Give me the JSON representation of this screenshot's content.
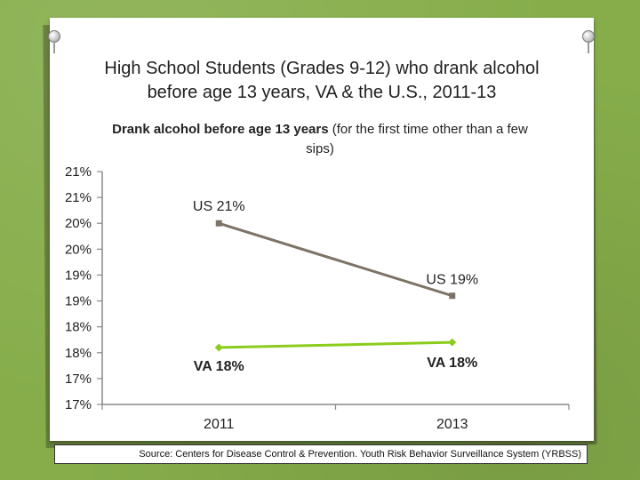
{
  "slide": {
    "title_line1": "High School Students (Grades 9-12) who drank alcohol",
    "title_line2_prefix": "before age 13 years,",
    "title_line2_suffix": " VA & the U.S., 2011-13",
    "subtitle_bold": "Drank alcohol before age 13 years",
    "subtitle_rest": " (for the first time other than a few sips)",
    "source": "Source: Centers for Disease Control & Prevention. Youth Risk Behavior Surveillance System (YRBSS)"
  },
  "colors": {
    "background": "#86ad4a",
    "us_line": "#7f7366",
    "va_line": "#8ccc1c",
    "axis": "#888888"
  },
  "chart_data": {
    "type": "line",
    "title": "Drank alcohol before age 13 years (for the first time other than a few sips)",
    "categories": [
      "2011",
      "2013"
    ],
    "ylim": [
      17,
      21.5
    ],
    "y_ticks": [
      17.0,
      17.5,
      18.0,
      18.5,
      19.0,
      19.5,
      20.0,
      20.5,
      21.0,
      21.5
    ],
    "y_tick_labels": [
      "17%",
      "17%",
      "18%",
      "18%",
      "19%",
      "19%",
      "20%",
      "20%",
      "21%",
      "21%"
    ],
    "series": [
      {
        "name": "US",
        "values": [
          20.5,
          19.1
        ],
        "data_labels": [
          "US  21%",
          "US  19%"
        ],
        "color": "#7f7366",
        "marker": "square"
      },
      {
        "name": "VA",
        "values": [
          18.1,
          18.2
        ],
        "data_labels": [
          "VA  18%",
          "VA  18%"
        ],
        "color": "#8ccc1c",
        "marker": "diamond"
      }
    ],
    "grid": false,
    "legend": "none"
  }
}
